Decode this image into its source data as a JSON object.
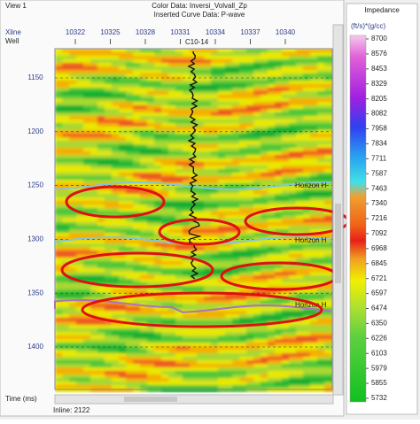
{
  "window": {
    "title": "View 1",
    "color_data": "Color Data: Inversi_Volvall_Zp",
    "curve_data": "Inserted Curve Data: P-wave"
  },
  "section": {
    "xline_label": "Xline",
    "well_label": "Well",
    "xlines": [
      "10322",
      "10325",
      "10328",
      "10331",
      "10334",
      "10337",
      "10340"
    ],
    "well_name": "C10-14",
    "times": [
      "1150",
      "1200",
      "1250",
      "1300",
      "1350",
      "1400"
    ],
    "time_label": "Time (ms)",
    "inline": "Inline: 2122",
    "horizons": [
      "Horizon H",
      "Horizon H",
      "Horizon H"
    ]
  },
  "colorbar": {
    "title": "Impedance",
    "units": "(ft/s)*(g/cc)",
    "labels": [
      "8700",
      "8576",
      "8453",
      "8329",
      "8205",
      "8082",
      "7958",
      "7834",
      "7711",
      "7587",
      "7463",
      "7340",
      "7216",
      "7092",
      "6968",
      "6845",
      "6721",
      "6597",
      "6474",
      "6350",
      "6226",
      "6103",
      "5979",
      "5855",
      "5732"
    ]
  }
}
